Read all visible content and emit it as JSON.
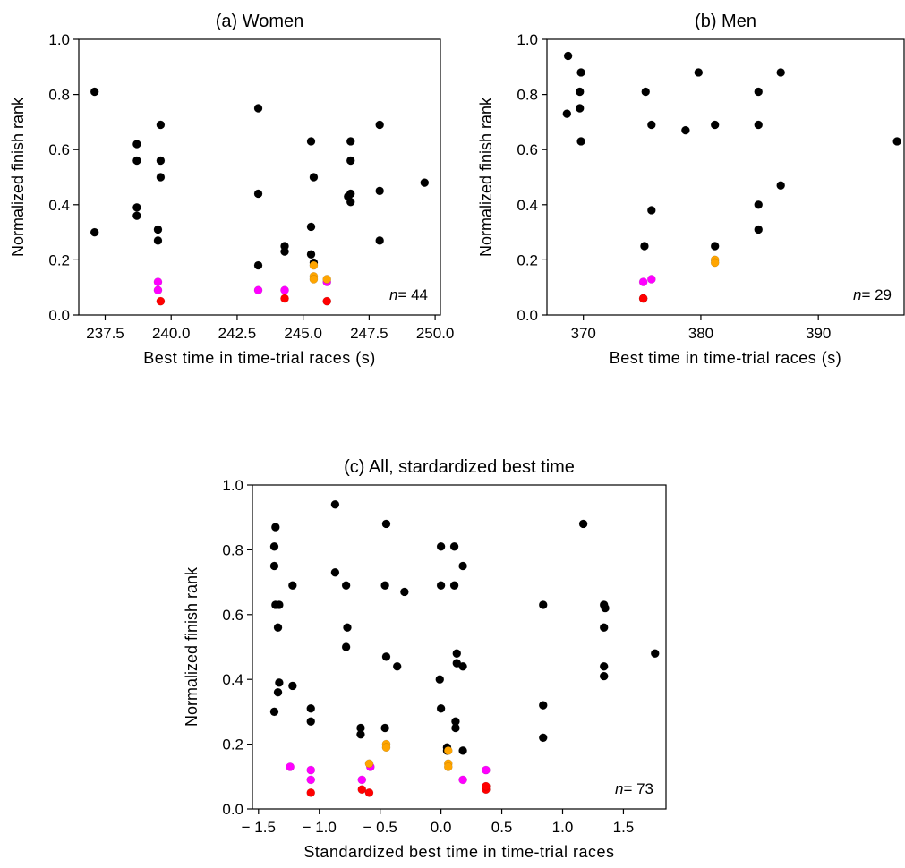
{
  "chart_data": [
    {
      "type": "scatter",
      "title": "(a)  Women",
      "xlabel": "Best time in time-trial races (s)",
      "ylabel": "Normalized finish rank",
      "xlim": [
        236.5,
        250.2
      ],
      "ylim": [
        0.0,
        1.0
      ],
      "xticks": [
        "237.5",
        "240.0",
        "242.5",
        "245.0",
        "247.5",
        "250.0"
      ],
      "yticks": [
        "0.0",
        "0.2",
        "0.4",
        "0.6",
        "0.8",
        "1.0"
      ],
      "annotation": {
        "prefix": "n",
        "text": "= 44"
      },
      "grid": false,
      "series": [
        {
          "color": "#000000",
          "points": [
            [
              237.1,
              0.81
            ],
            [
              237.1,
              0.3
            ],
            [
              238.7,
              0.62
            ],
            [
              238.7,
              0.56
            ],
            [
              238.7,
              0.39
            ],
            [
              238.7,
              0.36
            ],
            [
              239.6,
              0.69
            ],
            [
              239.6,
              0.56
            ],
            [
              239.6,
              0.5
            ],
            [
              239.5,
              0.31
            ],
            [
              239.5,
              0.27
            ],
            [
              243.3,
              0.75
            ],
            [
              243.3,
              0.44
            ],
            [
              243.3,
              0.18
            ],
            [
              244.3,
              0.25
            ],
            [
              244.3,
              0.23
            ],
            [
              245.3,
              0.63
            ],
            [
              245.4,
              0.5
            ],
            [
              245.3,
              0.32
            ],
            [
              245.3,
              0.22
            ],
            [
              245.4,
              0.19
            ],
            [
              246.8,
              0.63
            ],
            [
              246.8,
              0.56
            ],
            [
              246.8,
              0.44
            ],
            [
              246.7,
              0.43
            ],
            [
              246.8,
              0.41
            ],
            [
              247.9,
              0.69
            ],
            [
              247.9,
              0.45
            ],
            [
              247.9,
              0.27
            ],
            [
              249.6,
              0.48
            ]
          ]
        },
        {
          "color": "#ff00ff",
          "points": [
            [
              239.5,
              0.12
            ],
            [
              239.5,
              0.09
            ],
            [
              243.3,
              0.09
            ],
            [
              244.3,
              0.09
            ],
            [
              245.9,
              0.12
            ]
          ]
        },
        {
          "color": "#ffa500",
          "points": [
            [
              245.4,
              0.18
            ],
            [
              245.4,
              0.14
            ],
            [
              245.4,
              0.13
            ],
            [
              245.9,
              0.13
            ]
          ]
        },
        {
          "color": "#ff0000",
          "points": [
            [
              239.6,
              0.05
            ],
            [
              244.3,
              0.06
            ],
            [
              245.9,
              0.05
            ]
          ]
        }
      ]
    },
    {
      "type": "scatter",
      "title": "(b)  Men",
      "xlabel": "Best time in time-trial races (s)",
      "ylabel": "Normalized finish rank",
      "xlim": [
        366.9,
        397.3
      ],
      "ylim": [
        0.0,
        1.0
      ],
      "xticks": [
        "370",
        "380",
        "390"
      ],
      "yticks": [
        "0.0",
        "0.2",
        "0.4",
        "0.6",
        "0.8",
        "1.0"
      ],
      "annotation": {
        "prefix": "n",
        "text": "= 29"
      },
      "grid": false,
      "series": [
        {
          "color": "#000000",
          "points": [
            [
              368.7,
              0.94
            ],
            [
              368.6,
              0.73
            ],
            [
              369.8,
              0.88
            ],
            [
              369.7,
              0.81
            ],
            [
              369.7,
              0.75
            ],
            [
              369.8,
              0.63
            ],
            [
              375.3,
              0.81
            ],
            [
              375.8,
              0.69
            ],
            [
              375.2,
              0.25
            ],
            [
              375.8,
              0.38
            ],
            [
              378.7,
              0.67
            ],
            [
              379.8,
              0.88
            ],
            [
              381.2,
              0.69
            ],
            [
              381.2,
              0.25
            ],
            [
              384.9,
              0.81
            ],
            [
              384.9,
              0.69
            ],
            [
              384.9,
              0.4
            ],
            [
              384.9,
              0.31
            ],
            [
              386.8,
              0.88
            ],
            [
              386.8,
              0.47
            ],
            [
              396.7,
              0.63
            ]
          ]
        },
        {
          "color": "#ff00ff",
          "points": [
            [
              375.1,
              0.12
            ],
            [
              375.8,
              0.13
            ]
          ]
        },
        {
          "color": "#ffa500",
          "points": [
            [
              381.2,
              0.2
            ],
            [
              381.2,
              0.19
            ]
          ]
        },
        {
          "color": "#ff0000",
          "points": [
            [
              375.1,
              0.06
            ],
            [
              375.1,
              0.06
            ]
          ]
        }
      ]
    },
    {
      "type": "scatter",
      "title": "(c)  All, stardardized best time",
      "xlabel": "Standardized best time in time-trial races",
      "ylabel": "Normalized finish rank",
      "xlim": [
        -1.55,
        1.85
      ],
      "ylim": [
        0.0,
        1.0
      ],
      "xticks": [
        "− 1.5",
        "− 1.0",
        "− 0.5",
        "0.0",
        "0.5",
        "1.0",
        "1.5"
      ],
      "yticks": [
        "0.0",
        "0.2",
        "0.4",
        "0.6",
        "0.8",
        "1.0"
      ],
      "annotation": {
        "prefix": "n",
        "text": "= 73"
      },
      "grid": false,
      "series": [
        {
          "color": "#000000",
          "points": [
            [
              -1.36,
              0.87
            ],
            [
              -1.37,
              0.81
            ],
            [
              -1.37,
              0.75
            ],
            [
              -1.36,
              0.63
            ],
            [
              -1.33,
              0.63
            ],
            [
              -1.34,
              0.56
            ],
            [
              -1.33,
              0.39
            ],
            [
              -1.34,
              0.36
            ],
            [
              -1.37,
              0.3
            ],
            [
              -1.22,
              0.69
            ],
            [
              -1.22,
              0.38
            ],
            [
              -1.07,
              0.31
            ],
            [
              -1.07,
              0.27
            ],
            [
              -0.87,
              0.94
            ],
            [
              -0.87,
              0.73
            ],
            [
              -0.78,
              0.69
            ],
            [
              -0.77,
              0.56
            ],
            [
              -0.78,
              0.5
            ],
            [
              -0.66,
              0.25
            ],
            [
              -0.66,
              0.23
            ],
            [
              -0.45,
              0.88
            ],
            [
              -0.46,
              0.69
            ],
            [
              -0.45,
              0.47
            ],
            [
              -0.46,
              0.25
            ],
            [
              -0.36,
              0.44
            ],
            [
              -0.3,
              0.67
            ],
            [
              0.0,
              0.81
            ],
            [
              0.0,
              0.69
            ],
            [
              -0.01,
              0.4
            ],
            [
              0.0,
              0.31
            ],
            [
              0.05,
              0.19
            ],
            [
              0.05,
              0.18
            ],
            [
              0.11,
              0.81
            ],
            [
              0.11,
              0.69
            ],
            [
              0.13,
              0.48
            ],
            [
              0.13,
              0.45
            ],
            [
              0.12,
              0.27
            ],
            [
              0.12,
              0.25
            ],
            [
              0.18,
              0.75
            ],
            [
              0.18,
              0.44
            ],
            [
              0.18,
              0.18
            ],
            [
              0.84,
              0.63
            ],
            [
              0.84,
              0.32
            ],
            [
              0.84,
              0.22
            ],
            [
              1.17,
              0.88
            ],
            [
              1.34,
              0.63
            ],
            [
              1.35,
              0.62
            ],
            [
              1.34,
              0.56
            ],
            [
              1.34,
              0.44
            ],
            [
              1.34,
              0.41
            ],
            [
              1.76,
              0.48
            ]
          ]
        },
        {
          "color": "#ff00ff",
          "points": [
            [
              -1.24,
              0.13
            ],
            [
              -1.07,
              0.12
            ],
            [
              -1.07,
              0.09
            ],
            [
              -0.65,
              0.09
            ],
            [
              -0.58,
              0.13
            ],
            [
              0.18,
              0.09
            ],
            [
              0.37,
              0.12
            ]
          ]
        },
        {
          "color": "#ffa500",
          "points": [
            [
              -0.45,
              0.2
            ],
            [
              -0.45,
              0.19
            ],
            [
              -0.59,
              0.14
            ],
            [
              0.06,
              0.18
            ],
            [
              0.06,
              0.14
            ],
            [
              0.06,
              0.13
            ]
          ]
        },
        {
          "color": "#ff0000",
          "points": [
            [
              -1.07,
              0.05
            ],
            [
              -0.65,
              0.06
            ],
            [
              -0.59,
              0.05
            ],
            [
              0.37,
              0.06
            ],
            [
              0.37,
              0.07
            ]
          ]
        }
      ]
    }
  ]
}
